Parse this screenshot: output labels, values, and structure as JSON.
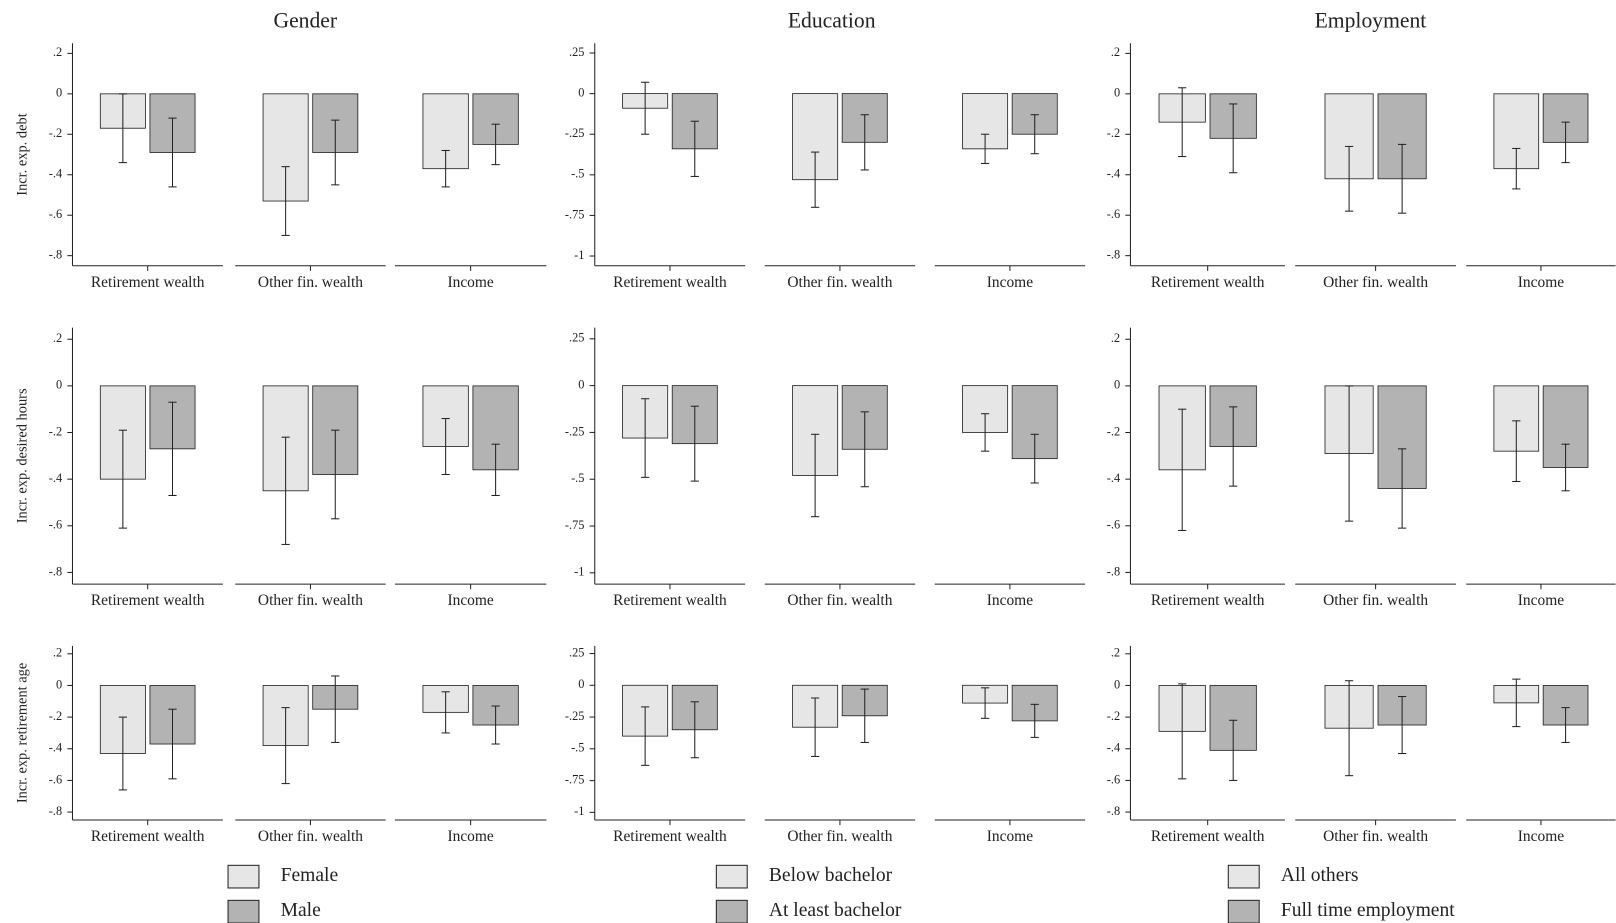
{
  "chart_data": [
    {
      "type": "bar",
      "title": "Gender",
      "categories": [
        "Retirement wealth",
        "Other fin. wealth",
        "Income"
      ],
      "series": [
        {
          "name": "Female",
          "color": "#e6e6e6"
        },
        {
          "name": "Male",
          "color": "#b3b3b3"
        }
      ],
      "ylim": [
        -0.85,
        0.25
      ],
      "yticks": [
        {
          "value": 0.2,
          "label": ".2"
        },
        0,
        {
          "value": -0.2,
          "label": "-.2"
        },
        {
          "value": -0.4,
          "label": "-.4"
        },
        {
          "value": -0.6,
          "label": "-.6"
        },
        {
          "value": -0.8,
          "label": "-.8"
        }
      ],
      "panels": [
        {
          "ylabel": "Incr. exp. debt",
          "series": [
            {
              "values": [
                -0.17,
                -0.53,
                -0.37
              ],
              "errors": [
                0.17,
                0.17,
                0.09
              ]
            },
            {
              "values": [
                -0.29,
                -0.29,
                -0.25
              ],
              "errors": [
                0.17,
                0.16,
                0.1
              ]
            }
          ]
        },
        {
          "ylabel": "Incr. exp. desired hours",
          "series": [
            {
              "values": [
                -0.4,
                -0.45,
                -0.26
              ],
              "errors": [
                0.21,
                0.23,
                0.12
              ]
            },
            {
              "values": [
                -0.27,
                -0.38,
                -0.36
              ],
              "errors": [
                0.2,
                0.19,
                0.11
              ]
            }
          ]
        },
        {
          "ylabel": "Incr. exp. retirement age",
          "series": [
            {
              "values": [
                -0.43,
                -0.38,
                -0.17
              ],
              "errors": [
                0.23,
                0.24,
                0.13
              ]
            },
            {
              "values": [
                -0.37,
                -0.15,
                -0.25
              ],
              "errors": [
                0.22,
                0.21,
                0.12
              ]
            }
          ]
        }
      ]
    },
    {
      "type": "bar",
      "title": "Education",
      "categories": [
        "Retirement wealth",
        "Other fin. wealth",
        "Income"
      ],
      "series": [
        {
          "name": "Below bachelor",
          "color": "#e6e6e6"
        },
        {
          "name": "At least bachelor",
          "color": "#b3b3b3"
        }
      ],
      "ylim": [
        -1.06,
        0.31
      ],
      "yticks": [
        {
          "value": 0.25,
          "label": ".25"
        },
        0,
        {
          "value": -0.25,
          "label": "-.25"
        },
        {
          "value": -0.5,
          "label": "-.5"
        },
        {
          "value": -0.75,
          "label": "-.75"
        },
        -1
      ],
      "panels": [
        {
          "series": [
            {
              "values": [
                -0.09,
                -0.53,
                -0.34
              ],
              "errors": [
                0.16,
                0.17,
                0.09
              ]
            },
            {
              "values": [
                -0.34,
                -0.3,
                -0.25
              ],
              "errors": [
                0.17,
                0.17,
                0.12
              ]
            }
          ]
        },
        {
          "series": [
            {
              "values": [
                -0.28,
                -0.48,
                -0.25
              ],
              "errors": [
                0.21,
                0.22,
                0.1
              ]
            },
            {
              "values": [
                -0.31,
                -0.34,
                -0.39
              ],
              "errors": [
                0.2,
                0.2,
                0.13
              ]
            }
          ]
        },
        {
          "series": [
            {
              "values": [
                -0.4,
                -0.33,
                -0.14
              ],
              "errors": [
                0.23,
                0.23,
                0.12
              ]
            },
            {
              "values": [
                -0.35,
                -0.24,
                -0.28
              ],
              "errors": [
                0.22,
                0.21,
                0.13
              ]
            }
          ]
        }
      ]
    },
    {
      "type": "bar",
      "title": "Employment",
      "categories": [
        "Retirement wealth",
        "Other fin. wealth",
        "Income"
      ],
      "series": [
        {
          "name": "All others",
          "color": "#e6e6e6"
        },
        {
          "name": "Full time employment",
          "color": "#b3b3b3"
        }
      ],
      "ylim": [
        -0.85,
        0.25
      ],
      "yticks": [
        {
          "value": 0.2,
          "label": ".2"
        },
        0,
        {
          "value": -0.2,
          "label": "-.2"
        },
        {
          "value": -0.4,
          "label": "-.4"
        },
        {
          "value": -0.6,
          "label": "-.6"
        },
        {
          "value": -0.8,
          "label": "-.8"
        }
      ],
      "panels": [
        {
          "series": [
            {
              "values": [
                -0.14,
                -0.42,
                -0.37
              ],
              "errors": [
                0.17,
                0.16,
                0.1
              ]
            },
            {
              "values": [
                -0.22,
                -0.42,
                -0.24
              ],
              "errors": [
                0.17,
                0.17,
                0.1
              ]
            }
          ]
        },
        {
          "series": [
            {
              "values": [
                -0.36,
                -0.29,
                -0.28
              ],
              "errors": [
                0.26,
                0.29,
                0.13
              ]
            },
            {
              "values": [
                -0.26,
                -0.44,
                -0.35
              ],
              "errors": [
                0.17,
                0.17,
                0.1
              ]
            }
          ]
        },
        {
          "series": [
            {
              "values": [
                -0.29,
                -0.27,
                -0.11
              ],
              "errors": [
                0.3,
                0.3,
                0.15
              ]
            },
            {
              "values": [
                -0.41,
                -0.25,
                -0.25
              ],
              "errors": [
                0.19,
                0.18,
                0.11
              ]
            }
          ]
        }
      ]
    }
  ]
}
